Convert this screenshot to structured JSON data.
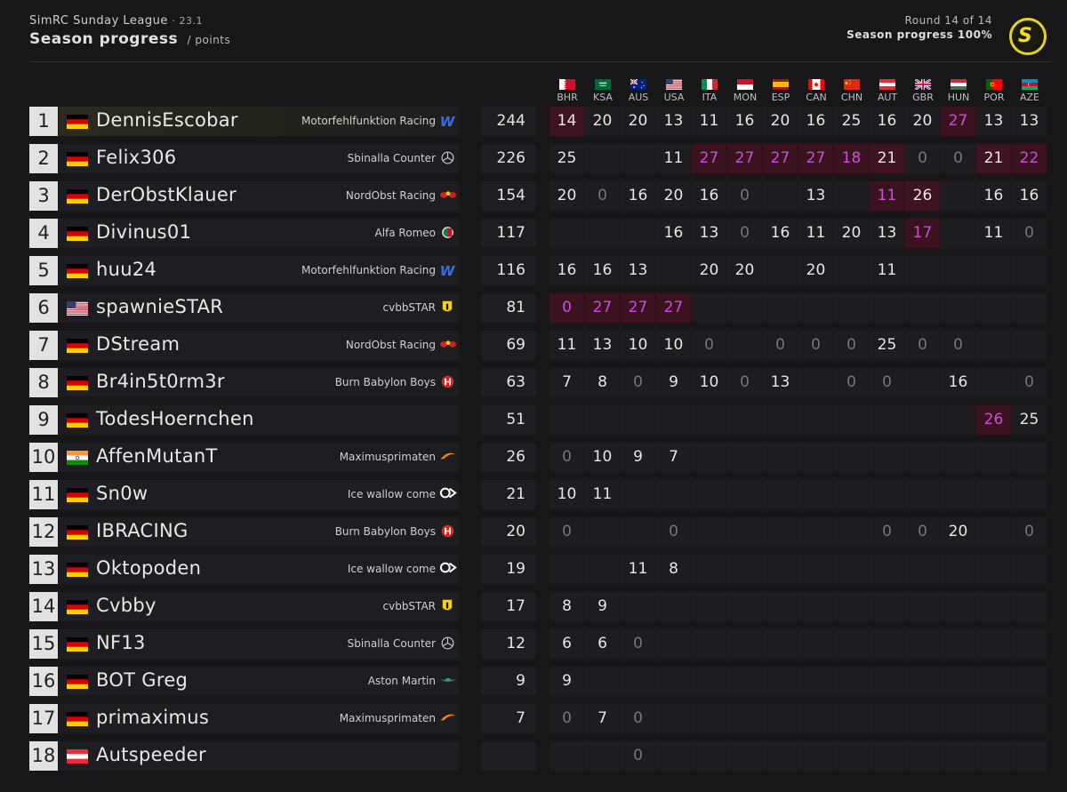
{
  "header": {
    "league": "SimRC Sunday League",
    "season": "· 23.1",
    "title": "Season progress",
    "unit": "/ points",
    "round": "Round 14 of 14",
    "progress": "Season progress 100%"
  },
  "races": [
    {
      "code": "BHR",
      "flag": "bhr"
    },
    {
      "code": "KSA",
      "flag": "ksa"
    },
    {
      "code": "AUS",
      "flag": "aus"
    },
    {
      "code": "USA",
      "flag": "usa"
    },
    {
      "code": "ITA",
      "flag": "ita"
    },
    {
      "code": "MON",
      "flag": "mon"
    },
    {
      "code": "ESP",
      "flag": "esp"
    },
    {
      "code": "CAN",
      "flag": "can"
    },
    {
      "code": "CHN",
      "flag": "chn"
    },
    {
      "code": "AUT",
      "flag": "aut"
    },
    {
      "code": "GBR",
      "flag": "gbr"
    },
    {
      "code": "HUN",
      "flag": "hun"
    },
    {
      "code": "POR",
      "flag": "por"
    },
    {
      "code": "AZE",
      "flag": "aze"
    }
  ],
  "standings": [
    {
      "pos": "1",
      "driver": "DennisEscobar",
      "nation": "ger",
      "team": "Motorfehlfunktion Racing",
      "logo": "williams",
      "total": "244",
      "pts": [
        "14",
        "20",
        "20",
        "13",
        "11",
        "16",
        "20",
        "16",
        "25",
        "16",
        "20",
        "27",
        "13",
        "13"
      ],
      "marks": [
        "w",
        "",
        "",
        "",
        "",
        "",
        "",
        "",
        "",
        "",
        "",
        "m",
        "",
        ""
      ]
    },
    {
      "pos": "2",
      "driver": "Felix306",
      "nation": "ger",
      "team": "Sbinalla Counter",
      "logo": "mercedes",
      "total": "226",
      "pts": [
        "25",
        "",
        "",
        "11",
        "27",
        "27",
        "27",
        "27",
        "18",
        "21",
        "0",
        "0",
        "21",
        "22"
      ],
      "marks": [
        "",
        "",
        "",
        "",
        "m",
        "m",
        "m",
        "m",
        "m",
        "w",
        "",
        "",
        "w",
        "m"
      ]
    },
    {
      "pos": "3",
      "driver": "DerObstKlauer",
      "nation": "ger",
      "team": "NordObst Racing",
      "logo": "redbull",
      "total": "154",
      "pts": [
        "20",
        "0",
        "16",
        "20",
        "16",
        "0",
        "",
        "13",
        "",
        "11",
        "26",
        "",
        "16",
        "16"
      ],
      "marks": [
        "",
        "",
        "",
        "",
        "",
        "",
        "",
        "",
        "",
        "m",
        "w",
        "",
        "",
        ""
      ]
    },
    {
      "pos": "4",
      "driver": "Divinus01",
      "nation": "ger",
      "team": "Alfa Romeo",
      "logo": "alfa",
      "total": "117",
      "pts": [
        "",
        "",
        "",
        "16",
        "13",
        "0",
        "16",
        "11",
        "20",
        "13",
        "17",
        "",
        "11",
        "0"
      ],
      "marks": [
        "",
        "",
        "",
        "",
        "",
        "",
        "",
        "",
        "",
        "",
        "m",
        "",
        "",
        ""
      ]
    },
    {
      "pos": "5",
      "driver": "huu24",
      "nation": "ger",
      "team": "Motorfehlfunktion Racing",
      "logo": "williams",
      "total": "116",
      "pts": [
        "16",
        "16",
        "13",
        "",
        "20",
        "20",
        "",
        "20",
        "",
        "11",
        "",
        "",
        "",
        ""
      ],
      "marks": [
        "",
        "",
        "",
        "",
        "",
        "",
        "",
        "",
        "",
        "",
        "",
        "",
        "",
        ""
      ]
    },
    {
      "pos": "6",
      "driver": "spawnieSTAR",
      "nation": "usa",
      "team": "cvbbSTAR",
      "logo": "ferrari",
      "total": "81",
      "pts": [
        "0",
        "27",
        "27",
        "27",
        "",
        "",
        "",
        "",
        "",
        "",
        "",
        "",
        "",
        ""
      ],
      "marks": [
        "m",
        "m",
        "m",
        "m",
        "",
        "",
        "",
        "",
        "",
        "",
        "",
        "",
        "",
        ""
      ]
    },
    {
      "pos": "7",
      "driver": "DStream",
      "nation": "ger",
      "team": "NordObst Racing",
      "logo": "redbull",
      "total": "69",
      "pts": [
        "11",
        "13",
        "10",
        "10",
        "0",
        "",
        "0",
        "0",
        "0",
        "25",
        "0",
        "0",
        "",
        ""
      ],
      "marks": [
        "",
        "",
        "",
        "",
        "",
        "",
        "",
        "",
        "",
        "",
        "",
        "",
        "",
        ""
      ]
    },
    {
      "pos": "8",
      "driver": "Br4in5t0rm3r",
      "nation": "ger",
      "team": "Burn Babylon Boys",
      "logo": "haas",
      "total": "63",
      "pts": [
        "7",
        "8",
        "0",
        "9",
        "10",
        "0",
        "13",
        "",
        "0",
        "0",
        "",
        "16",
        "",
        "0"
      ],
      "marks": [
        "",
        "",
        "",
        "",
        "",
        "",
        "",
        "",
        "",
        "",
        "",
        "",
        "",
        ""
      ]
    },
    {
      "pos": "9",
      "driver": "TodesHoernchen",
      "nation": "ger",
      "team": "",
      "logo": "",
      "total": "51",
      "pts": [
        "",
        "",
        "",
        "",
        "",
        "",
        "",
        "",
        "",
        "",
        "",
        "",
        "26",
        "25"
      ],
      "marks": [
        "",
        "",
        "",
        "",
        "",
        "",
        "",
        "",
        "",
        "",
        "",
        "",
        "m",
        ""
      ]
    },
    {
      "pos": "10",
      "driver": "AffenMutanT",
      "nation": "ind",
      "team": "Maximusprimaten",
      "logo": "mclaren",
      "total": "26",
      "pts": [
        "0",
        "10",
        "9",
        "7",
        "",
        "",
        "",
        "",
        "",
        "",
        "",
        "",
        "",
        ""
      ],
      "marks": [
        "",
        "",
        "",
        "",
        "",
        "",
        "",
        "",
        "",
        "",
        "",
        "",
        "",
        ""
      ]
    },
    {
      "pos": "11",
      "driver": "Sn0w",
      "nation": "ger",
      "team": "Ice wallow come",
      "logo": "alpha",
      "total": "21",
      "pts": [
        "10",
        "11",
        "",
        "",
        "",
        "",
        "",
        "",
        "",
        "",
        "",
        "",
        "",
        ""
      ],
      "marks": [
        "",
        "",
        "",
        "",
        "",
        "",
        "",
        "",
        "",
        "",
        "",
        "",
        "",
        ""
      ]
    },
    {
      "pos": "12",
      "driver": "IBRACING",
      "nation": "ger",
      "team": "Burn Babylon Boys",
      "logo": "haas",
      "total": "20",
      "pts": [
        "0",
        "",
        "",
        "0",
        "",
        "",
        "",
        "",
        "",
        "0",
        "0",
        "20",
        "",
        "0"
      ],
      "marks": [
        "",
        "",
        "",
        "",
        "",
        "",
        "",
        "",
        "",
        "",
        "",
        "",
        "",
        ""
      ]
    },
    {
      "pos": "13",
      "driver": "Oktopoden",
      "nation": "ger",
      "team": "Ice wallow come",
      "logo": "alpha",
      "total": "19",
      "pts": [
        "",
        "",
        "11",
        "8",
        "",
        "",
        "",
        "",
        "",
        "",
        "",
        "",
        "",
        ""
      ],
      "marks": [
        "",
        "",
        "",
        "",
        "",
        "",
        "",
        "",
        "",
        "",
        "",
        "",
        "",
        ""
      ]
    },
    {
      "pos": "14",
      "driver": "Cvbby",
      "nation": "ger",
      "team": "cvbbSTAR",
      "logo": "ferrari",
      "total": "17",
      "pts": [
        "8",
        "9",
        "",
        "",
        "",
        "",
        "",
        "",
        "",
        "",
        "",
        "",
        "",
        ""
      ],
      "marks": [
        "",
        "",
        "",
        "",
        "",
        "",
        "",
        "",
        "",
        "",
        "",
        "",
        "",
        ""
      ]
    },
    {
      "pos": "15",
      "driver": "NF13",
      "nation": "ger",
      "team": "Sbinalla Counter",
      "logo": "mercedes",
      "total": "12",
      "pts": [
        "6",
        "6",
        "0",
        "",
        "",
        "",
        "",
        "",
        "",
        "",
        "",
        "",
        "",
        ""
      ],
      "marks": [
        "",
        "",
        "",
        "",
        "",
        "",
        "",
        "",
        "",
        "",
        "",
        "",
        "",
        ""
      ]
    },
    {
      "pos": "16",
      "driver": "BOT Greg",
      "nation": "ger",
      "team": "Aston Martin",
      "logo": "aston",
      "total": "9",
      "pts": [
        "9",
        "",
        "",
        "",
        "",
        "",
        "",
        "",
        "",
        "",
        "",
        "",
        "",
        ""
      ],
      "marks": [
        "",
        "",
        "",
        "",
        "",
        "",
        "",
        "",
        "",
        "",
        "",
        "",
        "",
        ""
      ]
    },
    {
      "pos": "17",
      "driver": "primaximus",
      "nation": "ger",
      "team": "Maximusprimaten",
      "logo": "mclaren",
      "total": "7",
      "pts": [
        "0",
        "7",
        "0",
        "",
        "",
        "",
        "",
        "",
        "",
        "",
        "",
        "",
        "",
        ""
      ],
      "marks": [
        "",
        "",
        "",
        "",
        "",
        "",
        "",
        "",
        "",
        "",
        "",
        "",
        "",
        ""
      ]
    },
    {
      "pos": "18",
      "driver": "Autspeeder",
      "nation": "aut",
      "team": "",
      "logo": "",
      "total": "",
      "pts": [
        "",
        "",
        "0",
        "",
        "",
        "",
        "",
        "",
        "",
        "",
        "",
        "",
        "",
        ""
      ],
      "marks": [
        "",
        "",
        "",
        "",
        "",
        "",
        "",
        "",
        "",
        "",
        "",
        "",
        "",
        ""
      ]
    }
  ],
  "colors": {
    "background": "#17171a",
    "fastest": "#d04ae0",
    "highlight_cell": "#3a1220",
    "accent_logo": "#e6d21a"
  }
}
